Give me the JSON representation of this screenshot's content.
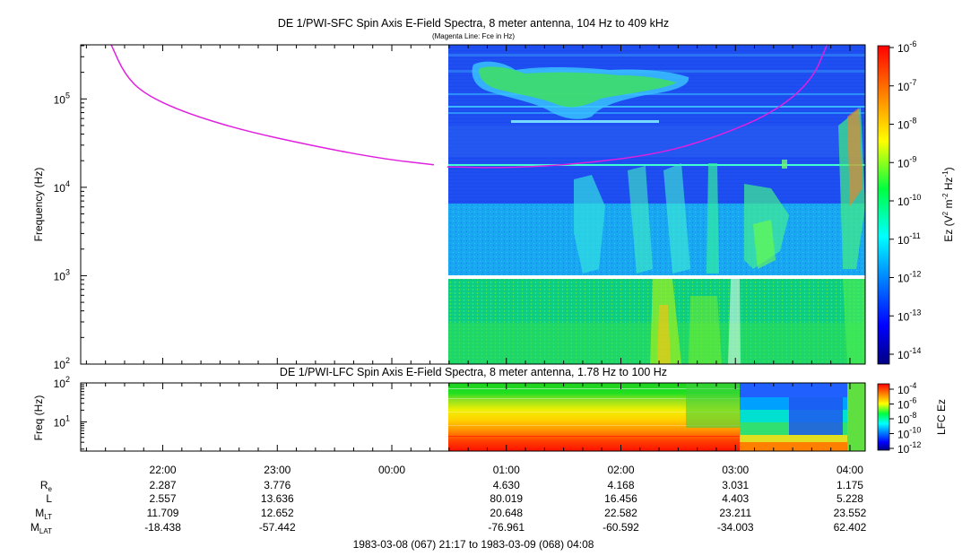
{
  "chart_data": [
    {
      "type": "heatmap",
      "title": "DE 1/PWI-SFC  Spin Axis E-Field Spectra, 8 meter antenna, 104 Hz to 409 kHz",
      "subtitle": "(Magenta Line: Fce in Hz)",
      "ylabel": "Frequency (Hz)",
      "yscale": "log",
      "ylim": [
        100,
        409000
      ],
      "y_ticks": [
        {
          "value": 100,
          "base": "10",
          "exp": "2"
        },
        {
          "value": 1000,
          "base": "10",
          "exp": "3"
        },
        {
          "value": 10000,
          "base": "10",
          "exp": "4"
        },
        {
          "value": 100000,
          "base": "10",
          "exp": "5"
        }
      ],
      "data_start_time": "00:29",
      "colorbar": {
        "label": "Ez (V",
        "label_sup1": "2",
        "label_mid": " m",
        "label_sup2": "-2",
        "label_mid2": " Hz",
        "label_sup3": "-1",
        "label_end": ")",
        "exponents": [
          "-6",
          "-7",
          "-8",
          "-9",
          "-10",
          "-11",
          "-12",
          "-13",
          "-14"
        ],
        "base": "10"
      },
      "fce_line": {
        "color": "#e020e0",
        "segments": [
          [
            [
              "21:33",
              409000
            ],
            [
              "21:40",
              190000
            ],
            [
              "21:50",
              115000
            ],
            [
              "22:10",
              72000
            ],
            [
              "22:40",
              45000
            ],
            [
              "23:20",
              29000
            ],
            [
              "23:55",
              21000
            ],
            [
              "00:22",
              18000
            ]
          ],
          [
            [
              "00:29",
              17000
            ],
            [
              "01:00",
              16500
            ],
            [
              "01:40",
              18500
            ],
            [
              "02:20",
              24000
            ],
            [
              "02:50",
              37000
            ],
            [
              "03:20",
              70000
            ],
            [
              "03:40",
              160000
            ],
            [
              "03:48",
              409000
            ]
          ]
        ]
      }
    },
    {
      "type": "heatmap",
      "title": "DE 1/PWI-LFC  Spin Axis E-Field Spectra, 8 meter antenna, 1.78 Hz to 100 Hz",
      "ylabel": "Freq (Hz)",
      "yscale": "log",
      "ylim": [
        1.78,
        100
      ],
      "y_ticks": [
        {
          "value": 10,
          "base": "10",
          "exp": "1"
        },
        {
          "value": 100,
          "base": "10",
          "exp": "2"
        }
      ],
      "colorbar": {
        "label": "LFC Ez",
        "exponents": [
          "-4",
          "-6",
          "-8",
          "-10",
          "-12"
        ],
        "base": "10"
      }
    }
  ],
  "x_axis": {
    "ticks": [
      "22:00",
      "23:00",
      "00:00",
      "01:00",
      "02:00",
      "03:00",
      "04:00"
    ],
    "range": "1983-03-08 (067) 21:17 to 1983-03-09 (068) 04:08"
  },
  "orbit_table": {
    "rows": [
      {
        "label": "R",
        "sub": "e",
        "values": [
          "2.287",
          "3.776",
          "",
          "4.630",
          "4.168",
          "3.031",
          "1.175"
        ]
      },
      {
        "label": "L",
        "sub": "",
        "values": [
          "2.557",
          "13.636",
          "",
          "80.019",
          "16.456",
          "4.403",
          "5.228"
        ]
      },
      {
        "label": "M",
        "sub": "LT",
        "values": [
          "11.709",
          "12.652",
          "",
          "20.648",
          "22.582",
          "23.211",
          "23.552"
        ]
      },
      {
        "label": "M",
        "sub": "LAT",
        "values": [
          "-18.438",
          "-57.442",
          "",
          "-76.961",
          "-60.592",
          "-34.003",
          "62.402"
        ]
      }
    ]
  }
}
